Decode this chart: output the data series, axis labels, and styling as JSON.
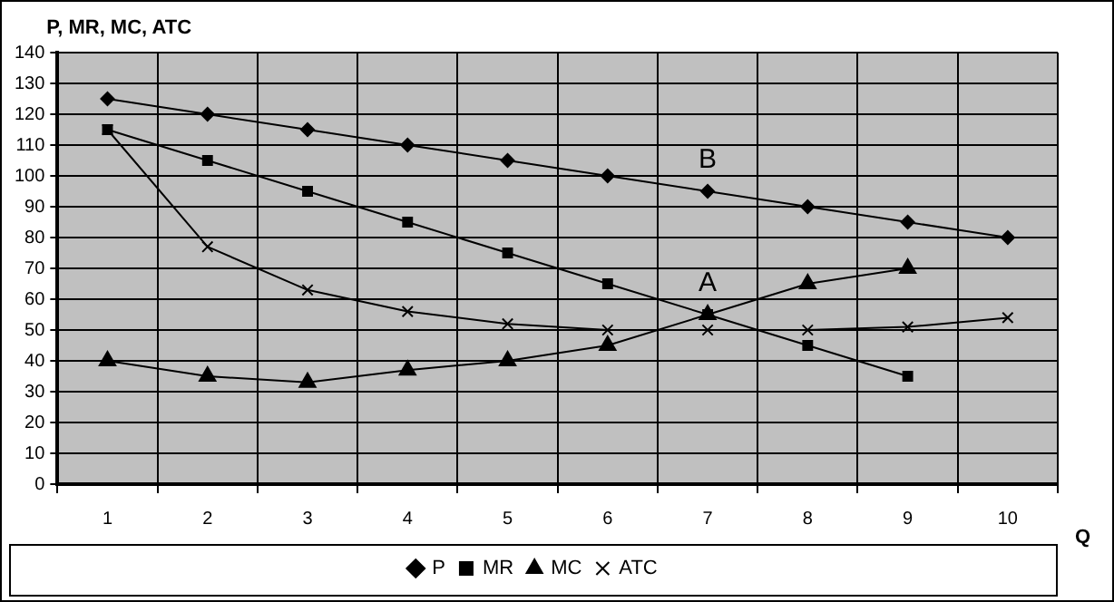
{
  "chart_data": {
    "type": "line",
    "ylabel": "P, MR, MC, ATC",
    "xlabel": "Q",
    "categories": [
      "1",
      "2",
      "3",
      "4",
      "5",
      "6",
      "7",
      "8",
      "9",
      "10"
    ],
    "ylim": [
      0,
      140
    ],
    "yticks": [
      0,
      10,
      20,
      30,
      40,
      50,
      60,
      70,
      80,
      90,
      100,
      110,
      120,
      130,
      140
    ],
    "grid": true,
    "legend": "bottom",
    "line_style": "solid",
    "series": [
      {
        "name": "P",
        "color": "#000000",
        "marker": "diamond",
        "values": [
          125,
          120,
          115,
          110,
          105,
          100,
          95,
          90,
          85,
          80
        ]
      },
      {
        "name": "MR",
        "color": "#000000",
        "marker": "square",
        "values": [
          115,
          105,
          95,
          85,
          75,
          65,
          55,
          45,
          35,
          null
        ]
      },
      {
        "name": "MC",
        "color": "#000000",
        "marker": "triangle",
        "values": [
          40,
          35,
          33,
          37,
          40,
          45,
          55,
          65,
          70,
          null
        ]
      },
      {
        "name": "ATC",
        "color": "#000000",
        "marker": "cross",
        "values": [
          115,
          77,
          63,
          56,
          52,
          50,
          50,
          50,
          51,
          54
        ]
      }
    ],
    "annotations": [
      "A",
      "B"
    ]
  }
}
